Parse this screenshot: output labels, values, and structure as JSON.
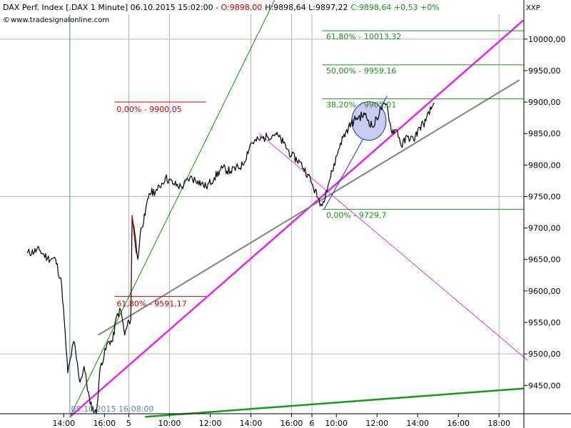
{
  "header": {
    "title_prefix": "DAX Perf. Index [.DAX  1 Minute] 06.10.2015 15:02:00 - ",
    "o_text": "O:9898,00",
    "hl_text": "H:9898,64 L:9897,22",
    "c_text": "C:9898,64 +0,53 +0%",
    "source": "www.tradesignalonline.com",
    "symbol_code": "XXP"
  },
  "colors": {
    "price": "#000000",
    "fib_green": "#228b22",
    "fib_red": "#cc0000",
    "magenta": "#ee22ee",
    "gray_trend": "#808080",
    "thin_green": "#1a8a1a",
    "thin_violet": "#d040d0",
    "blue_line": "#1f2ecc",
    "circle_fill": "#c8ccf0",
    "circle_stroke": "#2b2b9c",
    "grid": "#b5b5b5",
    "session_line": "#5c86a8",
    "bottom_green": "#1a9a1a",
    "date_label": "#5c86a8"
  },
  "chart_data": {
    "type": "line",
    "title": "DAX Perf. Index [.DAX  1 Minute]",
    "xlabel": "",
    "ylabel": "",
    "ylim": [
      9400,
      10050
    ],
    "y_ticks": [
      9450,
      9500,
      9550,
      9600,
      9650,
      9700,
      9750,
      9800,
      9850,
      9900,
      9950,
      10000
    ],
    "y_tick_labels": [
      "9450,00",
      "9500,00",
      "9550,00",
      "9600,00",
      "9650,00",
      "9700,00",
      "9750,00",
      "9800,00",
      "9850,00",
      "9900,00",
      "9950,00",
      "10000,00"
    ],
    "x_ticks": [
      {
        "t": 0.9,
        "label": "14:00"
      },
      {
        "t": 1.9,
        "label": "16:00"
      },
      {
        "t": 2.5,
        "label": "5"
      },
      {
        "t": 3.5,
        "label": "10:00"
      },
      {
        "t": 4.5,
        "label": "12:00"
      },
      {
        "t": 5.5,
        "label": "14:00"
      },
      {
        "t": 6.5,
        "label": "16:00"
      },
      {
        "t": 7.0,
        "label": "6"
      },
      {
        "t": 7.6,
        "label": "10:00"
      },
      {
        "t": 8.6,
        "label": "12:00"
      },
      {
        "t": 9.6,
        "label": "14:00"
      },
      {
        "t": 10.6,
        "label": "16:00"
      },
      {
        "t": 11.6,
        "label": "18:00"
      }
    ],
    "price_anchors": [
      [
        0.0,
        9660
      ],
      [
        0.3,
        9665
      ],
      [
        0.5,
        9652
      ],
      [
        0.7,
        9650
      ],
      [
        0.85,
        9610
      ],
      [
        1.0,
        9470
      ],
      [
        1.15,
        9520
      ],
      [
        1.3,
        9455
      ],
      [
        1.4,
        9480
      ],
      [
        1.55,
        9420
      ],
      [
        1.7,
        9405
      ],
      [
        1.8,
        9480
      ],
      [
        2.0,
        9520
      ],
      [
        2.1,
        9520
      ],
      [
        2.2,
        9560
      ],
      [
        2.3,
        9570
      ],
      [
        2.4,
        9530
      ],
      [
        2.5,
        9552
      ],
      [
        2.55,
        9555
      ],
      [
        2.58,
        9720
      ],
      [
        2.65,
        9690
      ],
      [
        2.72,
        9650
      ],
      [
        2.8,
        9700
      ],
      [
        2.9,
        9720
      ],
      [
        3.0,
        9755
      ],
      [
        3.2,
        9760
      ],
      [
        3.4,
        9780
      ],
      [
        3.6,
        9770
      ],
      [
        3.8,
        9765
      ],
      [
        4.0,
        9780
      ],
      [
        4.2,
        9775
      ],
      [
        4.4,
        9765
      ],
      [
        4.6,
        9780
      ],
      [
        4.8,
        9795
      ],
      [
        5.0,
        9790
      ],
      [
        5.3,
        9800
      ],
      [
        5.5,
        9835
      ],
      [
        5.7,
        9840
      ],
      [
        5.9,
        9845
      ],
      [
        6.1,
        9850
      ],
      [
        6.3,
        9835
      ],
      [
        6.5,
        9815
      ],
      [
        6.7,
        9805
      ],
      [
        6.9,
        9785
      ],
      [
        7.0,
        9770
      ],
      [
        7.15,
        9748
      ],
      [
        7.25,
        9735
      ],
      [
        7.35,
        9760
      ],
      [
        7.5,
        9790
      ],
      [
        7.7,
        9835
      ],
      [
        7.9,
        9860
      ],
      [
        8.1,
        9875
      ],
      [
        8.3,
        9880
      ],
      [
        8.5,
        9860
      ],
      [
        8.7,
        9890
      ],
      [
        8.85,
        9895
      ],
      [
        8.95,
        9855
      ],
      [
        9.1,
        9855
      ],
      [
        9.2,
        9830
      ],
      [
        9.35,
        9845
      ],
      [
        9.5,
        9840
      ],
      [
        9.65,
        9860
      ],
      [
        9.8,
        9870
      ],
      [
        10.0,
        9899
      ]
    ],
    "fib_up": [
      {
        "label": "61,80% - 10013,32",
        "value": 10013.32
      },
      {
        "label": "50,00% - 9959,16",
        "value": 9959.16
      },
      {
        "label": "38,20% - 9905,01",
        "value": 9905.01
      },
      {
        "label": "0,00% - 9729,7",
        "value": 9729.7
      }
    ],
    "fib_down": [
      {
        "label": "0,00% - 9900,05",
        "value": 9900.05
      },
      {
        "label": "61,80% - 9591,17",
        "value": 9591.17
      }
    ],
    "session_marker_label": "05.10.2015 16:08:00"
  }
}
